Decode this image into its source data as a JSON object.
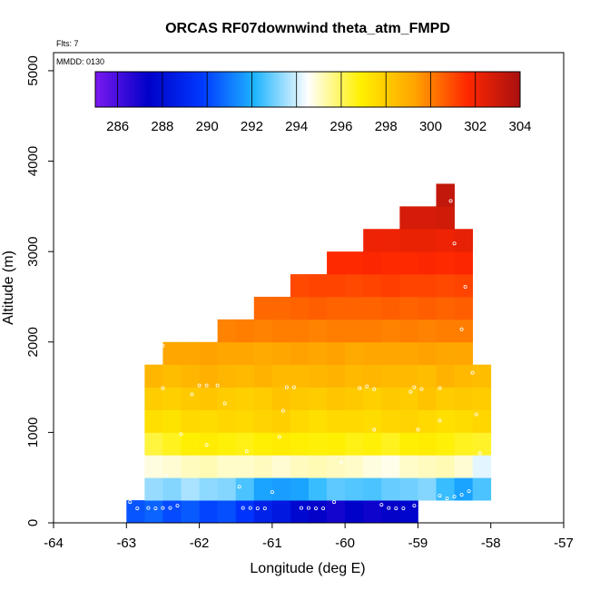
{
  "chart_data": {
    "type": "heatmap",
    "title": "ORCAS RF07downwind theta_atm_FMPD",
    "flights_label": "Flts: 7",
    "date_label": "MMDD: 0130",
    "xlabel": "Longitude (deg E)",
    "ylabel": "Altitude (m)",
    "xlim": [
      -64,
      -57
    ],
    "ylim": [
      0,
      5200
    ],
    "x_ticks": [
      -64,
      -63,
      -62,
      -61,
      -60,
      -59,
      -58,
      -57
    ],
    "y_ticks": [
      0,
      1000,
      2000,
      3000,
      4000,
      5000
    ],
    "colorbar": {
      "min": 285,
      "max": 304,
      "ticks": [
        286,
        288,
        290,
        292,
        294,
        296,
        298,
        300,
        302,
        304
      ],
      "stops": [
        "#7b19f0",
        "#0000c8",
        "#0038ff",
        "#1eb4ff",
        "#ffffff",
        "#fff000",
        "#ffa500",
        "#ff2800",
        "#a81010"
      ]
    },
    "cell_size": {
      "lon": 0.25,
      "alt": 250
    },
    "rows": [
      {
        "alt": [
          0,
          250
        ],
        "lon": [
          -63.0,
          -59.0
        ],
        "values": [
          290.3,
          290.6,
          290.1,
          290.4,
          290.0,
          290.2,
          289.6,
          288.8,
          288.4,
          287.7,
          287.3,
          287.0,
          287.4,
          287.1,
          287.3,
          287.6
        ]
      },
      {
        "alt": [
          250,
          500
        ],
        "lon": [
          -62.75,
          -58.0
        ],
        "values": [
          293.4,
          293.2,
          293.6,
          293.3,
          293.2,
          292.6,
          291.8,
          291.7,
          291.8,
          292.4,
          292.8,
          292.7,
          292.6,
          292.9,
          293.0,
          293.2,
          292.4,
          291.8,
          292.6
        ]
      },
      {
        "alt": [
          500,
          750
        ],
        "lon": [
          -62.75,
          -58.0
        ],
        "values": [
          294.8,
          294.9,
          295.1,
          295.2,
          295.0,
          295.0,
          295.1,
          294.9,
          295.1,
          295.2,
          295.1,
          295.0,
          294.8,
          294.7,
          295.0,
          295.1,
          295.2,
          294.9,
          294.2
        ]
      },
      {
        "alt": [
          750,
          1000
        ],
        "lon": [
          -62.75,
          -58.0
        ],
        "values": [
          296.3,
          296.6,
          296.9,
          297.0,
          296.8,
          296.7,
          296.9,
          297.0,
          296.9,
          296.8,
          296.9,
          296.7,
          296.8,
          296.6,
          296.9,
          297.0,
          296.8,
          296.6,
          296.5
        ]
      },
      {
        "alt": [
          1000,
          1250
        ],
        "lon": [
          -62.75,
          -58.0
        ],
        "values": [
          297.4,
          297.3,
          297.6,
          297.5,
          297.7,
          297.6,
          297.8,
          297.9,
          297.6,
          297.4,
          297.6,
          297.6,
          297.5,
          297.7,
          297.8,
          297.6,
          297.4,
          297.5,
          297.7
        ]
      },
      {
        "alt": [
          1250,
          1500
        ],
        "lon": [
          -62.75,
          -58.0
        ],
        "values": [
          298.0,
          297.9,
          298.1,
          298.2,
          298.0,
          297.9,
          298.0,
          298.3,
          298.1,
          298.0,
          298.2,
          298.1,
          297.9,
          298.1,
          298.0,
          298.3,
          298.0,
          298.1,
          298.0
        ]
      },
      {
        "alt": [
          1500,
          1750
        ],
        "lon": [
          -62.75,
          -58.0
        ],
        "values": [
          298.7,
          298.5,
          298.7,
          298.9,
          298.7,
          298.6,
          298.8,
          298.6,
          298.6,
          298.7,
          298.8,
          298.6,
          298.7,
          298.6,
          298.6,
          298.5,
          298.8,
          298.6,
          298.5
        ]
      },
      {
        "alt": [
          1750,
          2000
        ],
        "lon": [
          -62.5,
          -58.25
        ],
        "values": [
          299.2,
          299.2,
          299.3,
          299.2,
          299.2,
          299.1,
          299.2,
          299.3,
          299.2,
          299.3,
          299.1,
          299.2,
          299.2,
          299.2,
          299.3,
          299.2,
          299.2
        ]
      },
      {
        "alt": [
          2000,
          2250
        ],
        "lon": [
          -61.75,
          -58.25
        ],
        "values": [
          299.9,
          300.0,
          299.9,
          300.0,
          300.0,
          299.9,
          300.0,
          300.0,
          300.0,
          299.9,
          300.0,
          299.9,
          300.0,
          300.0
        ]
      },
      {
        "alt": [
          2250,
          2500
        ],
        "lon": [
          -61.25,
          -58.25
        ],
        "values": [
          300.4,
          300.4,
          300.5,
          300.6,
          300.5,
          300.5,
          300.5,
          300.6,
          300.5,
          300.6,
          300.5,
          300.6
        ]
      },
      {
        "alt": [
          2500,
          2750
        ],
        "lon": [
          -60.75,
          -58.25
        ],
        "values": [
          301.0,
          301.1,
          301.1,
          301.0,
          301.1,
          301.2,
          301.1,
          301.1,
          301.0,
          301.1
        ]
      },
      {
        "alt": [
          2750,
          3000
        ],
        "lon": [
          -60.25,
          -58.25
        ],
        "values": [
          301.6,
          301.6,
          301.7,
          301.6,
          301.6,
          301.7,
          301.6,
          301.7
        ]
      },
      {
        "alt": [
          3000,
          3250
        ],
        "lon": [
          -59.75,
          -58.25
        ],
        "values": [
          302.1,
          302.1,
          302.2,
          302.2,
          302.1,
          302.3
        ]
      },
      {
        "alt": [
          3250,
          3500
        ],
        "lon": [
          -59.25,
          -58.5
        ],
        "values": [
          302.8,
          302.8,
          302.9
        ]
      },
      {
        "alt": [
          3500,
          3750
        ],
        "lon": [
          -58.75,
          -58.5
        ],
        "values": [
          303.3
        ]
      }
    ],
    "observations": [
      [
        -62.85,
        160
      ],
      [
        -62.7,
        165
      ],
      [
        -62.6,
        160
      ],
      [
        -62.5,
        165
      ],
      [
        -62.4,
        165
      ],
      [
        -62.3,
        190
      ],
      [
        -62.95,
        230
      ],
      [
        -61.4,
        165
      ],
      [
        -61.3,
        165
      ],
      [
        -61.2,
        160
      ],
      [
        -61.1,
        160
      ],
      [
        -61.0,
        340
      ],
      [
        -60.6,
        165
      ],
      [
        -60.5,
        165
      ],
      [
        -60.4,
        160
      ],
      [
        -60.3,
        160
      ],
      [
        -60.15,
        230
      ],
      [
        -59.5,
        200
      ],
      [
        -59.4,
        165
      ],
      [
        -59.3,
        160
      ],
      [
        -59.2,
        160
      ],
      [
        -59.05,
        190
      ],
      [
        -58.7,
        300
      ],
      [
        -58.6,
        270
      ],
      [
        -58.5,
        290
      ],
      [
        -58.4,
        310
      ],
      [
        -58.3,
        350
      ],
      [
        -61.45,
        400
      ],
      [
        -60.05,
        670
      ],
      [
        -58.15,
        770
      ],
      [
        -62.45,
        520
      ],
      [
        -62.85,
        1050
      ],
      [
        -62.25,
        980
      ],
      [
        -61.9,
        860
      ],
      [
        -61.35,
        790
      ],
      [
        -60.9,
        950
      ],
      [
        -59.6,
        1030
      ],
      [
        -59.0,
        1030
      ],
      [
        -58.7,
        1130
      ],
      [
        -62.5,
        1490
      ],
      [
        -62.1,
        1420
      ],
      [
        -62.0,
        1520
      ],
      [
        -61.9,
        1520
      ],
      [
        -61.75,
        1520
      ],
      [
        -61.65,
        1320
      ],
      [
        -60.85,
        1240
      ],
      [
        -60.8,
        1500
      ],
      [
        -60.7,
        1500
      ],
      [
        -59.8,
        1490
      ],
      [
        -59.7,
        1510
      ],
      [
        -59.6,
        1480
      ],
      [
        -59.1,
        1450
      ],
      [
        -59.05,
        1500
      ],
      [
        -58.95,
        1480
      ],
      [
        -58.7,
        1490
      ],
      [
        -58.25,
        1660
      ],
      [
        -58.2,
        1200
      ],
      [
        -62.5,
        1960
      ],
      [
        -58.4,
        2140
      ],
      [
        -58.35,
        2610
      ],
      [
        -58.5,
        3090
      ],
      [
        -58.55,
        3560
      ]
    ]
  }
}
